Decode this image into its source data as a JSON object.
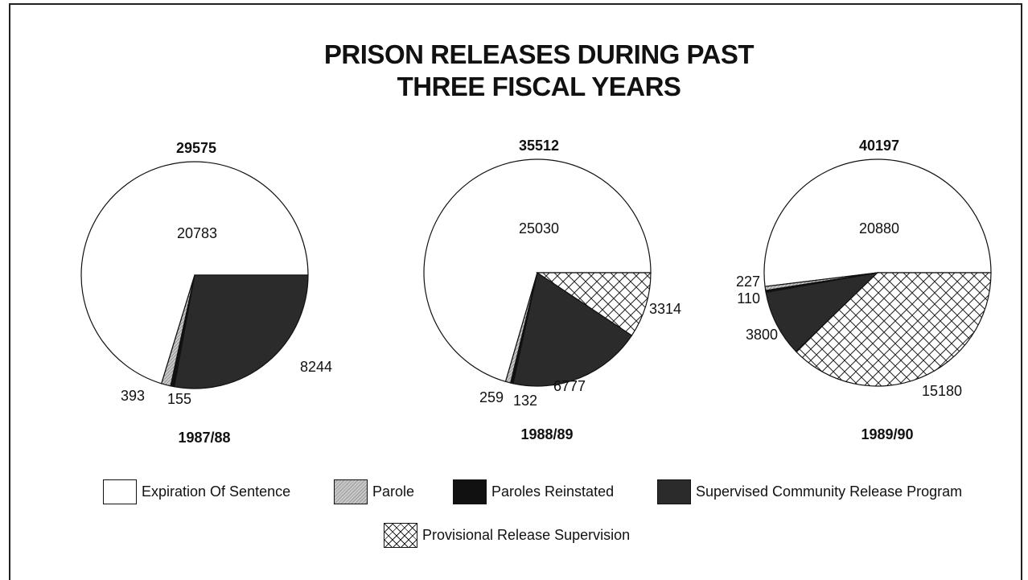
{
  "chart_data": {
    "type": "pie",
    "title_lines": [
      "PRISON RELEASES DURING PAST",
      "THREE FISCAL YEARS"
    ],
    "categories": [
      "Expiration Of Sentence",
      "Parole",
      "Paroles Reinstated",
      "Supervised Community Release Program",
      "Provisional Release Supervision"
    ],
    "colors": {
      "Expiration Of Sentence": "#ffffff",
      "Parole": "#c8c8c8",
      "Paroles Reinstated": "#111111",
      "Supervised Community Release Program": "#2b2b2b",
      "Provisional Release Supervision": "crosshatch"
    },
    "pies": [
      {
        "year": "1987/88",
        "total": "29575",
        "slices": [
          {
            "category": "Expiration Of Sentence",
            "value": 20783,
            "label": "20783"
          },
          {
            "category": "Parole",
            "value": 393,
            "label": "393"
          },
          {
            "category": "Paroles Reinstated",
            "value": 155,
            "label": "155"
          },
          {
            "category": "Supervised Community Release Program",
            "value": 8244,
            "label": "8244"
          }
        ]
      },
      {
        "year": "1988/89",
        "total": "35512",
        "slices": [
          {
            "category": "Expiration Of Sentence",
            "value": 25030,
            "label": "25030"
          },
          {
            "category": "Parole",
            "value": 259,
            "label": "259"
          },
          {
            "category": "Paroles Reinstated",
            "value": 132,
            "label": "132"
          },
          {
            "category": "Supervised Community Release Program",
            "value": 6777,
            "label": "6777"
          },
          {
            "category": "Provisional Release Supervision",
            "value": 3314,
            "label": "3314"
          }
        ]
      },
      {
        "year": "1989/90",
        "total": "40197",
        "slices": [
          {
            "category": "Expiration Of Sentence",
            "value": 20880,
            "label": "20880"
          },
          {
            "category": "Parole",
            "value": 227,
            "label": "227"
          },
          {
            "category": "Paroles Reinstated",
            "value": 110,
            "label": "110"
          },
          {
            "category": "Supervised Community Release Program",
            "value": 3800,
            "label": "3800"
          },
          {
            "category": "Provisional Release Supervision",
            "value": 15180,
            "label": "15180"
          }
        ]
      }
    ],
    "legend": [
      {
        "label": "Expiration Of Sentence",
        "category": "Expiration Of Sentence"
      },
      {
        "label": "Parole",
        "category": "Parole"
      },
      {
        "label": "Paroles Reinstated",
        "category": "Paroles Reinstated"
      },
      {
        "label": "Supervised Community Release Program",
        "category": "Supervised Community Release Program"
      },
      {
        "label": "Provisional Release Supervision",
        "category": "Provisional Release Supervision"
      }
    ],
    "legend_placement": "bottom"
  }
}
